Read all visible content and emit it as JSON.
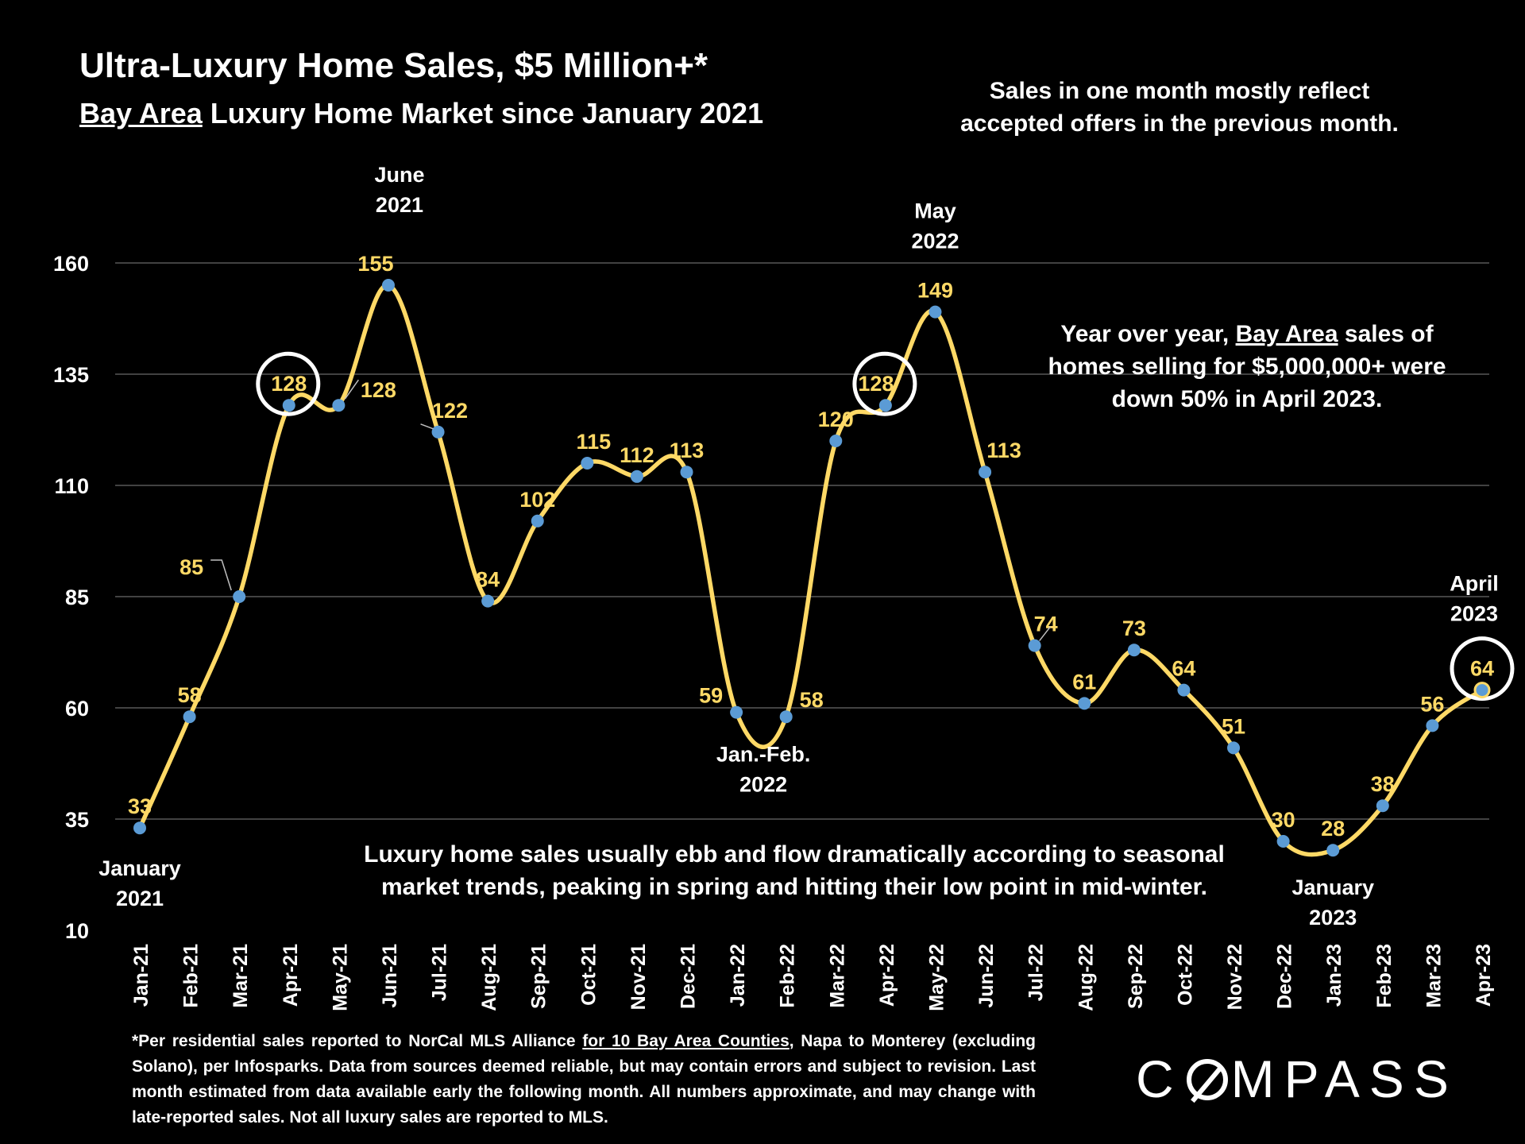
{
  "header": {
    "title": "Ultra-Luxury Home Sales, $5 Million+*",
    "subtitle_underlined": "Bay Area",
    "subtitle_rest": " Luxury Home Market since January 2021"
  },
  "notes": {
    "top_right": "Sales in one month mostly reflect accepted offers in the previous month.",
    "yoy_pre": "Year over year, ",
    "yoy_underlined": "Bay Area",
    "yoy_post": " sales of homes selling for $5,000,000+ were down 50% in April 2023.",
    "seasonal": "Luxury home sales usually ebb and flow dramatically according to seasonal market trends, peaking in spring and hitting their low point in mid-winter."
  },
  "footnote": {
    "pre": "*Per residential sales reported to NorCal MLS Alliance ",
    "underlined": "for 10 Bay Area Counties",
    "post": ", Napa to Monterey (excluding Solano), per Infosparks. Data from sources deemed reliable, but may contain errors and subject to revision. Last month estimated from data available early the following month. All numbers approximate, and may change with late-reported sales. Not all luxury sales are reported to MLS."
  },
  "logo": {
    "pre": "C",
    "post": "MPASS"
  },
  "colors": {
    "background": "#000000",
    "line": "#FFD966",
    "marker": "#5B9BD5",
    "label": "#FFD966",
    "grid": "#595959",
    "text": "#FFFFFF"
  },
  "chart_data": {
    "type": "line",
    "title": "Ultra-Luxury Home Sales, $5 Million+*",
    "categories": [
      "Jan-21",
      "Feb-21",
      "Mar-21",
      "Apr-21",
      "May-21",
      "Jun-21",
      "Jul-21",
      "Aug-21",
      "Sep-21",
      "Oct-21",
      "Nov-21",
      "Dec-21",
      "Jan-22",
      "Feb-22",
      "Mar-22",
      "Apr-22",
      "May-22",
      "Jun-22",
      "Jul-22",
      "Aug-22",
      "Sep-22",
      "Oct-22",
      "Nov-22",
      "Dec-22",
      "Jan-23",
      "Feb-23",
      "Mar-23",
      "Apr-23"
    ],
    "values": [
      33,
      58,
      85,
      128,
      128,
      155,
      122,
      84,
      102,
      115,
      112,
      113,
      59,
      58,
      120,
      128,
      149,
      113,
      74,
      61,
      73,
      64,
      51,
      30,
      28,
      38,
      56,
      64
    ],
    "ylim": [
      10,
      160
    ],
    "yticks": [
      10,
      35,
      60,
      85,
      110,
      135,
      160
    ],
    "grid": true,
    "highlighted": [
      "Apr-21",
      "Apr-22",
      "Apr-23"
    ],
    "annotations": [
      {
        "category": "Jan-21",
        "line1": "January",
        "line2": "2021"
      },
      {
        "category": "Jun-21",
        "line1": "June",
        "line2": "2021"
      },
      {
        "category": "Jan-22",
        "line1": "Jan.-Feb.",
        "line2": "2022"
      },
      {
        "category": "May-22",
        "line1": "May",
        "line2": "2022"
      },
      {
        "category": "Jan-23",
        "line1": "January",
        "line2": "2023"
      },
      {
        "category": "Apr-23",
        "line1": "April",
        "line2": "2023"
      }
    ]
  }
}
